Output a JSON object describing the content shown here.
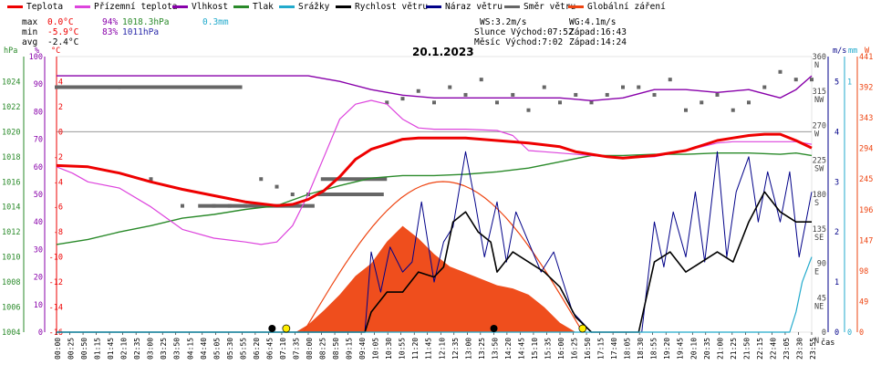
{
  "legend": [
    {
      "label": "Teplota",
      "color": "#ee0000"
    },
    {
      "label": "Přízemní teplota",
      "color": "#dd44dd"
    },
    {
      "label": "Vlhkost",
      "color": "#8800aa"
    },
    {
      "label": "Tlak",
      "color": "#2a8a2a"
    },
    {
      "label": "Srážky",
      "color": "#22aacc"
    },
    {
      "label": "Rychlost větru",
      "color": "#000000"
    },
    {
      "label": "Náraz větru",
      "color": "#000088"
    },
    {
      "label": "Směr větru",
      "color": "#666666"
    },
    {
      "label": "Globální záření",
      "color": "#ee4411"
    }
  ],
  "stats": {
    "max": {
      "label": "max",
      "temp": "0.0°C",
      "hum": "94%",
      "press": "1018.3hPa",
      "rain": "0.3mm"
    },
    "min": {
      "label": "min",
      "temp": "-5.9°C",
      "hum": "83%",
      "press": "1011hPa"
    },
    "avg": {
      "label": "avg",
      "temp": "-2.4°C"
    }
  },
  "sun_info": {
    "ws": "WS:3.2m/s",
    "wg": "WG:4.1m/s",
    "slunce": "Slunce Východ:07:52",
    "slunce_zapad": "Západ:16:43",
    "mesic": "Měsíc  Východ:7:02",
    "mesic_zapad": "Západ:14:24"
  },
  "colors": {
    "pressure_axis": "#2a8a2a",
    "humidity_axis": "#8800aa",
    "temp_axis": "#ee0000",
    "wind_axis": "#000088",
    "rain_axis": "#22aacc",
    "radiation_axis": "#ee4411"
  },
  "chart_data": {
    "type": "line",
    "title": "20.1.2023",
    "x_unit": "čas",
    "x_ticks": [
      "00:00",
      "00:25",
      "00:50",
      "01:15",
      "01:45",
      "02:10",
      "02:35",
      "03:00",
      "03:25",
      "03:50",
      "04:15",
      "04:40",
      "05:05",
      "05:30",
      "05:55",
      "06:20",
      "06:45",
      "07:10",
      "07:35",
      "08:00",
      "08:25",
      "08:50",
      "09:15",
      "09:40",
      "10:05",
      "10:30",
      "10:55",
      "11:20",
      "11:45",
      "12:10",
      "12:35",
      "13:00",
      "13:25",
      "13:50",
      "14:20",
      "14:45",
      "15:10",
      "15:35",
      "16:00",
      "16:25",
      "16:50",
      "17:15",
      "17:40",
      "18:05",
      "18:30",
      "18:55",
      "19:20",
      "19:45",
      "20:10",
      "20:35",
      "21:00",
      "21:25",
      "21:50",
      "22:15",
      "22:40",
      "23:05",
      "23:30",
      "23:55"
    ],
    "axes": {
      "pressure": {
        "label": "hPa",
        "ticks": [
          "1004",
          "1006",
          "1008",
          "1010",
          "1012",
          "1014",
          "1016",
          "1018",
          "1020",
          "1022",
          "1024"
        ],
        "range": [
          1004,
          1026
        ]
      },
      "humidity": {
        "label": "%",
        "ticks": [
          "0",
          "10",
          "20",
          "30",
          "40",
          "50",
          "60",
          "70",
          "80",
          "90",
          "100"
        ],
        "range": [
          0,
          100
        ]
      },
      "temperature": {
        "label": "°C",
        "ticks": [
          "-16",
          "-14",
          "-12",
          "-10",
          "-8",
          "-6",
          "-4",
          "-2",
          "0",
          "2",
          "4"
        ],
        "range": [
          -16,
          6
        ]
      },
      "wind": {
        "label": "m/s",
        "ticks": [
          "0",
          "1",
          "2",
          "3",
          "4",
          "5"
        ],
        "range": [
          0,
          5.5
        ]
      },
      "rain": {
        "label": "mm",
        "ticks": [
          "0",
          "1"
        ],
        "range": [
          0,
          1.1
        ]
      },
      "radiation": {
        "label": "W",
        "ticks": [
          "0",
          "49",
          "98",
          "147",
          "196",
          "245",
          "294",
          "343",
          "392",
          "441"
        ],
        "range": [
          0,
          441
        ]
      },
      "direction": {
        "ticks": [
          "N",
          "NE",
          "E",
          "SE",
          "S",
          "SW",
          "W",
          "NW",
          "N"
        ],
        "deg_ticks": [
          "0",
          "45",
          "90",
          "135",
          "180",
          "225",
          "270",
          "315",
          "360"
        ],
        "range": [
          0,
          360
        ]
      }
    },
    "series": [
      {
        "name": "Teplota",
        "color": "#ee0000",
        "x": [
          0,
          1,
          2,
          3,
          4,
          5,
          6,
          7,
          7.5,
          8,
          8.5,
          9,
          9.5,
          10,
          10.5,
          11,
          11.5,
          12,
          13,
          14,
          15,
          16,
          16.5,
          17,
          17.5,
          18,
          19,
          20,
          20.5,
          21,
          21.5,
          22,
          22.5,
          23,
          23.5,
          24
        ],
        "y": [
          -2.7,
          -2.8,
          -3.3,
          -4,
          -4.6,
          -5.1,
          -5.6,
          -5.9,
          -5.8,
          -5.4,
          -4.7,
          -3.6,
          -2.2,
          -1.4,
          -1,
          -0.6,
          -0.5,
          -0.5,
          -0.5,
          -0.7,
          -0.9,
          -1.2,
          -1.6,
          -1.8,
          -2,
          -2.1,
          -1.9,
          -1.5,
          -1.1,
          -0.7,
          -0.5,
          -0.3,
          -0.2,
          -0.2,
          -0.7,
          -1.3
        ]
      },
      {
        "name": "Přízemní teplota",
        "color": "#dd44dd",
        "x": [
          0,
          0.5,
          1,
          2,
          3,
          4,
          5,
          6,
          6.5,
          7,
          7.5,
          8,
          8.5,
          9,
          9.5,
          10,
          10.5,
          11,
          11.5,
          12,
          13,
          14,
          14.5,
          15,
          15.5,
          16,
          17,
          18,
          19,
          20,
          21,
          21.5,
          22,
          23,
          23.5,
          24
        ],
        "y": [
          -2.8,
          -3.3,
          -4,
          -4.5,
          -6,
          -7.8,
          -8.5,
          -8.8,
          -9,
          -8.8,
          -7.5,
          -5,
          -2,
          1,
          2.2,
          2.5,
          2.2,
          1,
          0.3,
          0.2,
          0.2,
          0.1,
          -0.3,
          -1.5,
          -1.6,
          -1.7,
          -1.9,
          -2.1,
          -2,
          -1.5,
          -0.9,
          -0.8,
          -0.8,
          -0.8,
          -0.8,
          -1
        ]
      },
      {
        "name": "Vlhkost",
        "color": "#8800aa",
        "x": [
          0,
          2,
          4,
          6,
          7,
          8,
          8.5,
          9,
          10,
          11,
          12,
          13,
          14,
          15,
          16,
          17,
          18,
          19,
          20,
          21,
          22,
          23,
          23.5,
          24
        ],
        "y": [
          93,
          93,
          93,
          93,
          93,
          93,
          92,
          91,
          88,
          86,
          85,
          85,
          85,
          85,
          85,
          84,
          85,
          88,
          88,
          87,
          88,
          85,
          88,
          93
        ]
      },
      {
        "name": "Tlak",
        "color": "#2a8a2a",
        "x": [
          0,
          1,
          2,
          3,
          4,
          5,
          6,
          7,
          8,
          9,
          10,
          11,
          12,
          13,
          14,
          15,
          16,
          17,
          18,
          19,
          20,
          21,
          22,
          23,
          23.5,
          24
        ],
        "y": [
          1011,
          1011.4,
          1012,
          1012.5,
          1013.1,
          1013.4,
          1013.8,
          1014.1,
          1015,
          1015.7,
          1016.3,
          1016.5,
          1016.5,
          1016.6,
          1016.8,
          1017.1,
          1017.6,
          1018.1,
          1018.1,
          1018.2,
          1018.2,
          1018.3,
          1018.3,
          1018.2,
          1018.3,
          1018.1
        ]
      },
      {
        "name": "Rychlost větru",
        "color": "#000000",
        "x": [
          0,
          6.3,
          7.4,
          9.8,
          10,
          10.5,
          11,
          11.5,
          12,
          12.3,
          12.6,
          13,
          13.4,
          13.8,
          14,
          14.5,
          15,
          15.5,
          16,
          16.5,
          17,
          17.3,
          17.6,
          18,
          18.5,
          19,
          19.5,
          20,
          20.5,
          21,
          21.5,
          22,
          22.5,
          23,
          23.5,
          24
        ],
        "y": [
          0,
          0,
          0,
          0,
          0.4,
          0.8,
          0.8,
          1.2,
          1.1,
          1.3,
          2.2,
          2.4,
          2,
          1.8,
          1.2,
          1.6,
          1.4,
          1.2,
          0.9,
          0.3,
          0,
          0,
          0,
          0,
          0,
          1.4,
          1.6,
          1.2,
          1.4,
          1.6,
          1.4,
          2.2,
          2.8,
          2.4,
          2.2,
          2.2
        ]
      },
      {
        "name": "Náraz větru",
        "color": "#000088",
        "x": [
          0,
          9.8,
          10,
          10.3,
          10.6,
          11,
          11.3,
          11.6,
          12,
          12.3,
          12.6,
          13,
          13.3,
          13.6,
          14,
          14.3,
          14.6,
          15,
          15.4,
          15.8,
          16,
          16.4,
          17,
          18.6,
          19,
          19.3,
          19.6,
          20,
          20.3,
          20.6,
          21,
          21.3,
          21.6,
          22,
          22.3,
          22.6,
          23,
          23.3,
          23.6,
          24
        ],
        "y": [
          0,
          0,
          1.6,
          0.8,
          1.7,
          1.2,
          1.4,
          2.6,
          1,
          1.8,
          2.1,
          3.6,
          2.6,
          1.5,
          2.6,
          1.4,
          2.4,
          1.8,
          1.2,
          1.6,
          1.2,
          0.4,
          0,
          0,
          2.2,
          1.3,
          2.4,
          1.5,
          2.8,
          1.4,
          3.6,
          1.5,
          2.8,
          3.5,
          2.2,
          3.2,
          2.2,
          3.2,
          1.5,
          2.8
        ]
      },
      {
        "name": "Srážky",
        "color": "#22aacc",
        "x": [
          0,
          23.3,
          23.5,
          23.7,
          24
        ],
        "y": [
          0,
          0,
          0.08,
          0.2,
          0.3
        ]
      },
      {
        "name": "Globální záření",
        "color": "#ee4411",
        "x": [
          7.6,
          8,
          8.5,
          9,
          9.5,
          10,
          10.5,
          11,
          11.5,
          12,
          12.5,
          13,
          13.5,
          14,
          14.5,
          15,
          15.5,
          16,
          16.5
        ],
        "y": [
          0,
          12,
          35,
          60,
          90,
          110,
          145,
          170,
          150,
          125,
          105,
          95,
          85,
          75,
          70,
          60,
          40,
          15,
          0
        ]
      },
      {
        "name": "Směr větru",
        "color": "#666666",
        "x": [
          0,
          2,
          3,
          4,
          5,
          5.5,
          6,
          6.5,
          7,
          7.5,
          8,
          8.5,
          10.5,
          11,
          11.5,
          12,
          12.5,
          13,
          13.5,
          14,
          14.5,
          15,
          15.5,
          16,
          16.5,
          17,
          17.5,
          18,
          18.5,
          19,
          19.5,
          20,
          20.5,
          21,
          21.5,
          22,
          22.5,
          23,
          23.5,
          24
        ],
        "y": [
          320,
          320,
          200,
          165,
          165,
          165,
          165,
          200,
          190,
          180,
          180,
          180,
          300,
          305,
          315,
          300,
          320,
          310,
          330,
          300,
          310,
          290,
          320,
          300,
          310,
          300,
          310,
          320,
          320,
          310,
          330,
          290,
          300,
          310,
          290,
          300,
          320,
          340,
          330,
          330
        ]
      }
    ]
  }
}
